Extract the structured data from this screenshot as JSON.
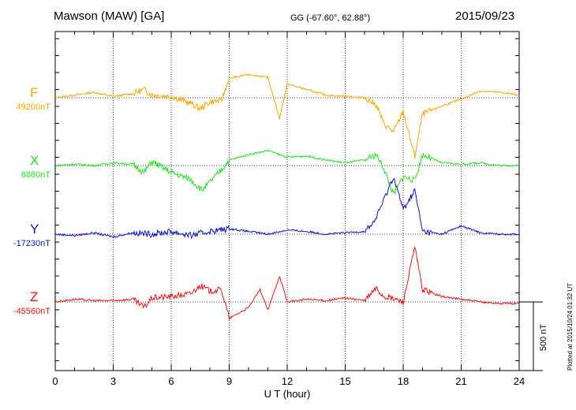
{
  "header": {
    "station": "Mawson (MAW)  [GA]",
    "coords": "GG (-67.60°,  62.88°)",
    "date": "2015/09/23"
  },
  "plotted_note": "Plotted at 2015/10/24 01:32 UT",
  "scale_label": "500 nT",
  "colors": {
    "F": "#f5a800",
    "X": "#22e022",
    "Y": "#1010cc",
    "Z": "#ee1111"
  },
  "chart_data": {
    "type": "line",
    "title": "",
    "xlabel": "U T (hour)",
    "ylabel": "",
    "xlim": [
      0,
      24
    ],
    "x_ticks": [
      "0",
      "3",
      "6",
      "9",
      "12",
      "15",
      "18",
      "21",
      "24"
    ],
    "grid": true,
    "series": [
      {
        "name": "F",
        "base_label": "49200nT",
        "color": "#f5a800",
        "points": [
          [
            0,
            0
          ],
          [
            1,
            20
          ],
          [
            2,
            40
          ],
          [
            3,
            10
          ],
          [
            4,
            30
          ],
          [
            4.6,
            60
          ],
          [
            5,
            20
          ],
          [
            6,
            10
          ],
          [
            7,
            -40
          ],
          [
            7.5,
            -80
          ],
          [
            8,
            -30
          ],
          [
            8.6,
            -20
          ],
          [
            9,
            140
          ],
          [
            10,
            170
          ],
          [
            11,
            150
          ],
          [
            11.6,
            -150
          ],
          [
            12,
            100
          ],
          [
            13,
            60
          ],
          [
            14,
            20
          ],
          [
            15,
            10
          ],
          [
            16,
            0
          ],
          [
            16.6,
            -50
          ],
          [
            17,
            -190
          ],
          [
            17.5,
            -250
          ],
          [
            18,
            -100
          ],
          [
            18.6,
            -430
          ],
          [
            19,
            -120
          ],
          [
            20,
            -60
          ],
          [
            21,
            -10
          ],
          [
            22,
            50
          ],
          [
            23,
            40
          ],
          [
            24,
            20
          ]
        ]
      },
      {
        "name": "X",
        "base_label": "6880nT",
        "color": "#22e022",
        "points": [
          [
            0,
            0
          ],
          [
            1,
            10
          ],
          [
            2,
            0
          ],
          [
            3,
            20
          ],
          [
            4,
            10
          ],
          [
            4.6,
            -50
          ],
          [
            5,
            30
          ],
          [
            6,
            -50
          ],
          [
            7,
            -100
          ],
          [
            7.6,
            -180
          ],
          [
            8,
            -120
          ],
          [
            8.6,
            -30
          ],
          [
            9,
            40
          ],
          [
            10,
            80
          ],
          [
            11,
            110
          ],
          [
            12,
            60
          ],
          [
            13,
            70
          ],
          [
            14,
            40
          ],
          [
            15,
            20
          ],
          [
            16,
            40
          ],
          [
            16.6,
            80
          ],
          [
            17,
            -20
          ],
          [
            17.5,
            -210
          ],
          [
            18,
            -80
          ],
          [
            18.6,
            -110
          ],
          [
            19,
            80
          ],
          [
            20,
            20
          ],
          [
            21,
            10
          ],
          [
            22,
            20
          ],
          [
            23,
            0
          ],
          [
            24,
            0
          ]
        ]
      },
      {
        "name": "Y",
        "base_label": "-17230nT",
        "color": "#1010cc",
        "points": [
          [
            0,
            0
          ],
          [
            1,
            -10
          ],
          [
            2,
            10
          ],
          [
            3,
            -20
          ],
          [
            4,
            10
          ],
          [
            5,
            0
          ],
          [
            6,
            20
          ],
          [
            7,
            -10
          ],
          [
            8,
            20
          ],
          [
            9,
            40
          ],
          [
            10,
            20
          ],
          [
            11,
            0
          ],
          [
            12,
            30
          ],
          [
            13,
            20
          ],
          [
            14,
            0
          ],
          [
            15,
            10
          ],
          [
            16,
            20
          ],
          [
            16.5,
            90
          ],
          [
            17,
            250
          ],
          [
            17.5,
            420
          ],
          [
            18,
            180
          ],
          [
            18.6,
            320
          ],
          [
            19,
            20
          ],
          [
            20,
            0
          ],
          [
            21,
            60
          ],
          [
            22,
            10
          ],
          [
            23,
            0
          ],
          [
            24,
            0
          ]
        ]
      },
      {
        "name": "Z",
        "base_label": "-45560nT",
        "color": "#ee1111",
        "points": [
          [
            0,
            0
          ],
          [
            1,
            20
          ],
          [
            2,
            10
          ],
          [
            3,
            10
          ],
          [
            4,
            20
          ],
          [
            4.6,
            -40
          ],
          [
            5,
            30
          ],
          [
            6,
            40
          ],
          [
            7,
            60
          ],
          [
            7.5,
            120
          ],
          [
            8,
            80
          ],
          [
            8.6,
            90
          ],
          [
            9,
            -120
          ],
          [
            10,
            -40
          ],
          [
            10.6,
            90
          ],
          [
            11,
            -60
          ],
          [
            11.6,
            190
          ],
          [
            12,
            0
          ],
          [
            13,
            20
          ],
          [
            14,
            10
          ],
          [
            15,
            30
          ],
          [
            16,
            10
          ],
          [
            16.6,
            100
          ],
          [
            17,
            40
          ],
          [
            17.6,
            20
          ],
          [
            18,
            0
          ],
          [
            18.6,
            400
          ],
          [
            19,
            90
          ],
          [
            20,
            40
          ],
          [
            21,
            20
          ],
          [
            22,
            0
          ],
          [
            23,
            -10
          ],
          [
            24,
            -10
          ]
        ]
      }
    ]
  }
}
